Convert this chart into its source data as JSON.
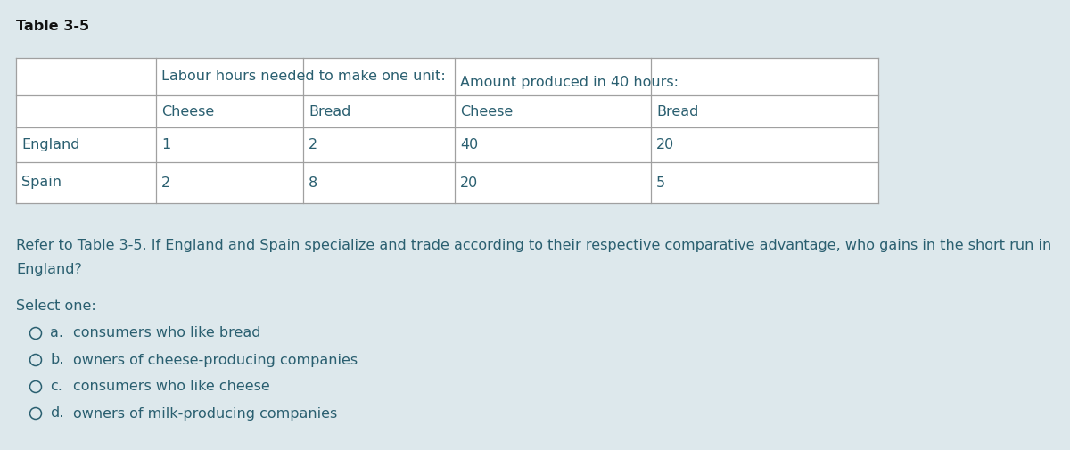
{
  "title": "Table 3-5",
  "background_color": "#dde8ec",
  "table_border_color": "#a0a0a0",
  "text_color": "#2a5f70",
  "title_color": "#111111",
  "header1_labour": "Labour hours needed to make one unit:",
  "header1_amount": "Amount produced in 40 hours:",
  "col_labels": [
    "Cheese",
    "Bread",
    "Cheese",
    "Bread"
  ],
  "rows": [
    [
      "England",
      "1",
      "2",
      "40",
      "20"
    ],
    [
      "Spain",
      "2",
      "8",
      "20",
      "5"
    ]
  ],
  "question_line1": "Refer to Table 3-5. If England and Spain specialize and trade according to their respective comparative advantage, who gains in the short run in",
  "question_line2": "England?",
  "select_label": "Select one:",
  "option_letters": [
    "a.",
    "b.",
    "c.",
    "d."
  ],
  "option_texts": [
    "consumers who like bread",
    "owners of cheese-producing companies",
    "consumers who like cheese",
    "owners of milk-producing companies"
  ],
  "fig_w": 12.0,
  "fig_h": 5.05,
  "dpi": 100
}
